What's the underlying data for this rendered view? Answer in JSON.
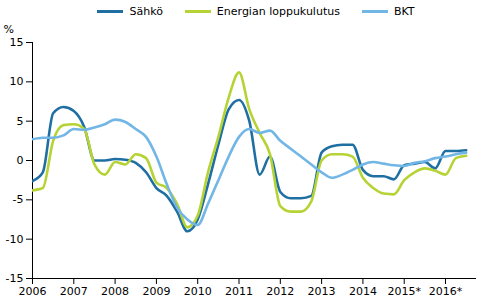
{
  "chart_data": {
    "type": "line",
    "y_label": "%",
    "legend": "top",
    "grid": false,
    "xlim": [
      2006,
      2016.75
    ],
    "xticks": [
      2006,
      2007,
      2008,
      2009,
      2010,
      2011,
      2012,
      2013,
      2014,
      {
        "value": 2015,
        "label": "2015*"
      },
      {
        "value": 2016,
        "label": "2016*"
      }
    ],
    "ylim": [
      -15,
      15
    ],
    "yticks": [
      -15,
      -10,
      -5,
      0,
      5,
      10,
      15
    ],
    "x": [
      2006,
      2006.25,
      2006.5,
      2006.75,
      2007,
      2007.25,
      2007.5,
      2007.75,
      2008,
      2008.25,
      2008.5,
      2008.75,
      2009,
      2009.25,
      2009.5,
      2009.75,
      2010,
      2010.25,
      2010.5,
      2010.75,
      2011,
      2011.25,
      2011.5,
      2011.75,
      2012,
      2012.25,
      2012.5,
      2012.75,
      2013,
      2013.25,
      2013.5,
      2013.75,
      2014,
      2014.25,
      2014.5,
      2014.75,
      2015,
      2015.25,
      2015.5,
      2015.75,
      2016,
      2016.25,
      2016.5
    ],
    "series": [
      {
        "name": "Sähkö",
        "color": "#1f6fa3",
        "values": [
          -2.6,
          -1.5,
          6.0,
          6.8,
          6.3,
          4.3,
          0.0,
          0.0,
          0.2,
          0.1,
          -0.3,
          -1.5,
          -3.5,
          -4.5,
          -6.5,
          -9.0,
          -7.5,
          -3.0,
          2.0,
          6.5,
          7.7,
          5.0,
          -1.8,
          0.5,
          -4.0,
          -4.8,
          -4.8,
          -4.5,
          1.0,
          1.8,
          2.0,
          2.0,
          -1.2,
          -2.0,
          -2.0,
          -2.4,
          -0.6,
          -0.4,
          -0.2,
          -1.0,
          1.2,
          1.2,
          1.3
        ]
      },
      {
        "name": "Energian loppukulutus",
        "color": "#b6d335",
        "values": [
          -3.8,
          -3.5,
          2.5,
          4.5,
          4.6,
          4.0,
          -0.5,
          -1.8,
          -0.2,
          -0.5,
          0.8,
          0.3,
          -2.8,
          -3.5,
          -5.5,
          -8.5,
          -7.0,
          -1.5,
          3.0,
          8.0,
          11.2,
          6.5,
          3.5,
          0.8,
          -5.8,
          -6.5,
          -6.5,
          -5.2,
          0.0,
          0.8,
          0.8,
          0.5,
          -2.2,
          -3.5,
          -4.2,
          -4.3,
          -2.5,
          -1.5,
          -1.0,
          -1.3,
          -1.8,
          0.3,
          0.6
        ]
      },
      {
        "name": "BKT",
        "color": "#72b6e6",
        "values": [
          2.7,
          2.9,
          2.9,
          3.2,
          4.0,
          3.9,
          4.2,
          4.6,
          5.2,
          4.9,
          4.0,
          3.0,
          0.5,
          -3.0,
          -6.0,
          -7.5,
          -8.2,
          -5.5,
          -2.5,
          0.5,
          3.0,
          4.0,
          3.5,
          3.8,
          2.5,
          1.5,
          0.5,
          -0.5,
          -1.5,
          -2.2,
          -1.8,
          -1.2,
          -0.5,
          -0.2,
          -0.4,
          -0.6,
          -0.7,
          -0.3,
          -0.1,
          0.3,
          0.5,
          0.8,
          1.0
        ]
      }
    ]
  }
}
